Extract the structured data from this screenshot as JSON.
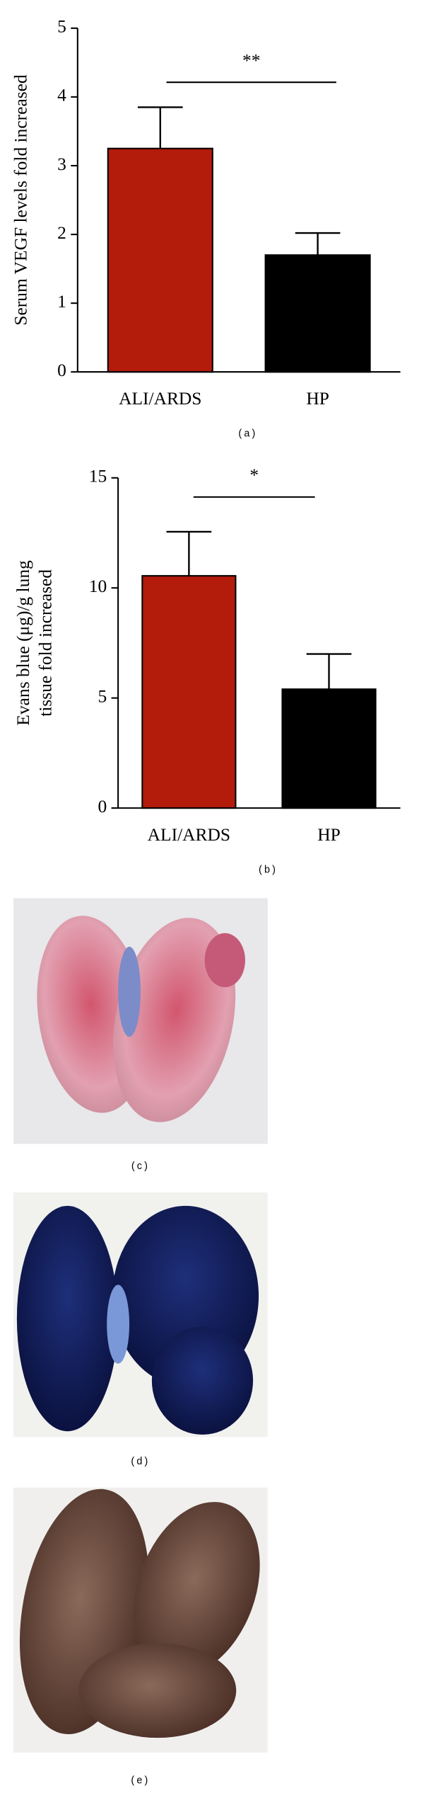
{
  "chart_data": [
    {
      "type": "bar",
      "ylabel": "Serum VEGF levels fold increased",
      "categories": [
        "ALI/ARDS",
        "HP"
      ],
      "values": [
        3.25,
        1.7
      ],
      "errors": [
        0.6,
        0.32
      ],
      "colors": [
        "#b31b0b",
        "#000000"
      ],
      "ylim": [
        0,
        5
      ],
      "yticks": [
        0,
        1,
        2,
        3,
        4,
        5
      ],
      "annotation": "**",
      "caption": "(a)"
    },
    {
      "type": "bar",
      "ylabel": [
        "Evans blue (μg)/g lung",
        "tissue fold increased"
      ],
      "categories": [
        "ALI/ARDS",
        "HP"
      ],
      "values": [
        10.55,
        5.4
      ],
      "errors": [
        2.0,
        1.6
      ],
      "colors": [
        "#b31b0b",
        "#000000"
      ],
      "ylim": [
        0,
        15
      ],
      "yticks": [
        0,
        5,
        10,
        15
      ],
      "annotation": "*",
      "caption": "(b)"
    }
  ],
  "images": [
    {
      "caption": "(c)"
    },
    {
      "caption": "(d)"
    },
    {
      "caption": "(e)"
    }
  ]
}
